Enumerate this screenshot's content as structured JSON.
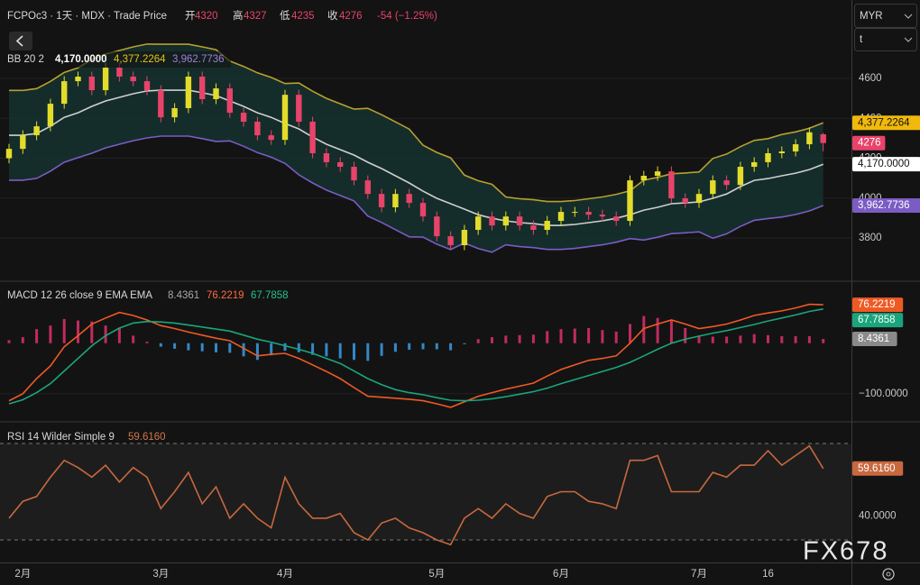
{
  "header": {
    "symbol": "FCPOc3 · 1天 · MDX · Trade Price",
    "ohlc_names": [
      "开",
      "高",
      "低",
      "收"
    ],
    "change": "-54 (−1.25%)"
  },
  "toolbar": {
    "currency": "MYR",
    "unit": "t"
  },
  "watermark": "FX678",
  "chart_data": [
    {
      "type": "candlestick",
      "title": "BB 20 2",
      "categories": [
        null,
        "2月",
        null,
        null,
        null,
        null,
        null,
        null,
        null,
        null,
        null,
        "3月",
        null,
        null,
        null,
        null,
        null,
        null,
        null,
        null,
        "4月",
        null,
        null,
        null,
        null,
        null,
        null,
        null,
        null,
        null,
        null,
        "5月",
        null,
        null,
        null,
        null,
        null,
        null,
        null,
        null,
        "6月",
        null,
        null,
        null,
        null,
        null,
        null,
        null,
        null,
        null,
        "7月",
        null,
        null,
        null,
        null,
        "16",
        null,
        null,
        null,
        null
      ],
      "open": [
        4200,
        4247,
        4315,
        4360,
        4473,
        4586,
        4609,
        4541,
        4654,
        4609,
        4586,
        4541,
        4405,
        4451,
        4609,
        4496,
        4550,
        4428,
        4383,
        4315,
        4292,
        4518,
        4383,
        4225,
        4180,
        4157,
        4089,
        4021,
        3954,
        4021,
        3976,
        3908,
        3809,
        3764,
        3841,
        3908,
        3863,
        3908,
        3863,
        3841,
        3886,
        3931,
        3931,
        3917,
        3908,
        3886,
        4089,
        4112,
        4134,
        3999,
        3976,
        4021,
        4089,
        4066,
        4157,
        4180,
        4225,
        4234,
        4270,
        4320
      ],
      "high": [
        4272,
        4340,
        4385,
        4498,
        4611,
        4634,
        4634,
        4679,
        4679,
        4634,
        4611,
        4566,
        4476,
        4634,
        4634,
        4575,
        4575,
        4453,
        4408,
        4340,
        4543,
        4543,
        4408,
        4250,
        4205,
        4182,
        4114,
        4046,
        4046,
        4046,
        4001,
        3933,
        3834,
        3866,
        3933,
        3933,
        3933,
        3933,
        3888,
        3911,
        3956,
        3956,
        3956,
        3942,
        3933,
        4114,
        4137,
        4159,
        4159,
        4024,
        4046,
        4114,
        4114,
        4182,
        4205,
        4250,
        4259,
        4295,
        4355,
        4327
      ],
      "low": [
        4175,
        4222,
        4290,
        4335,
        4448,
        4561,
        4516,
        4516,
        4584,
        4561,
        4516,
        4380,
        4380,
        4426,
        4471,
        4471,
        4403,
        4358,
        4290,
        4267,
        4267,
        4358,
        4200,
        4155,
        4132,
        4064,
        3996,
        3929,
        3929,
        3951,
        3883,
        3784,
        3739,
        3739,
        3816,
        3838,
        3838,
        3838,
        3816,
        3816,
        3861,
        3906,
        3892,
        3883,
        3861,
        3861,
        4064,
        4087,
        3974,
        3951,
        3951,
        3996,
        4041,
        4041,
        4132,
        4155,
        4200,
        4209,
        4245,
        4235
      ],
      "close": [
        4247,
        4315,
        4360,
        4473,
        4586,
        4609,
        4541,
        4654,
        4609,
        4586,
        4541,
        4405,
        4451,
        4609,
        4496,
        4550,
        4428,
        4383,
        4315,
        4292,
        4518,
        4383,
        4225,
        4180,
        4157,
        4089,
        4021,
        3954,
        4021,
        3976,
        3908,
        3809,
        3764,
        3841,
        3908,
        3863,
        3908,
        3863,
        3841,
        3886,
        3931,
        3931,
        3917,
        3908,
        3886,
        4089,
        4112,
        4134,
        3999,
        3976,
        4021,
        4089,
        4066,
        4157,
        4180,
        4225,
        4234,
        4270,
        4330,
        4276
      ],
      "up_color": "#e3dc2b",
      "down_color": "#e8436a",
      "band_fill": "#15322f",
      "series": [
        {
          "color": "#cfcfcf",
          "last_label": "4,170.0000",
          "values": [
            4315,
            4315,
            4324,
            4360,
            4405,
            4428,
            4460,
            4487,
            4505,
            4523,
            4537,
            4541,
            4541,
            4541,
            4528,
            4514,
            4487,
            4460,
            4428,
            4405,
            4374,
            4347,
            4306,
            4270,
            4243,
            4216,
            4180,
            4148,
            4112,
            4076,
            4035,
            3999,
            3972,
            3945,
            3917,
            3899,
            3886,
            3877,
            3872,
            3863,
            3863,
            3868,
            3877,
            3886,
            3899,
            3917,
            3940,
            3954,
            3972,
            3976,
            3981,
            3999,
            4021,
            4058,
            4089,
            4098,
            4112,
            4125,
            4143,
            4170
          ]
        },
        {
          "color": "#b8a02e",
          "last_label": "4,377.2264",
          "values": [
            4540,
            4540,
            4549,
            4585,
            4630,
            4653,
            4695,
            4722,
            4740,
            4758,
            4772,
            4771,
            4771,
            4771,
            4758,
            4744,
            4687,
            4660,
            4628,
            4605,
            4574,
            4577,
            4536,
            4500,
            4473,
            4446,
            4450,
            4418,
            4382,
            4346,
            4265,
            4229,
            4202,
            4115,
            4087,
            4069,
            4006,
            3997,
            3992,
            3983,
            3983,
            3988,
            3997,
            4006,
            4019,
            4037,
            4090,
            4104,
            4122,
            4126,
            4131,
            4199,
            4221,
            4258,
            4289,
            4298,
            4319,
            4332,
            4350,
            4377.2264
          ]
        },
        {
          "color": "#7b5cc4",
          "last_label": "3,962.7736",
          "values": [
            4090,
            4090,
            4099,
            4135,
            4180,
            4203,
            4225,
            4252,
            4270,
            4288,
            4302,
            4311,
            4311,
            4311,
            4298,
            4284,
            4287,
            4260,
            4228,
            4205,
            4174,
            4117,
            4076,
            4040,
            4013,
            3986,
            3910,
            3878,
            3842,
            3806,
            3805,
            3769,
            3742,
            3775,
            3747,
            3729,
            3766,
            3757,
            3752,
            3743,
            3743,
            3748,
            3757,
            3766,
            3779,
            3797,
            3790,
            3804,
            3822,
            3826,
            3831,
            3799,
            3821,
            3858,
            3889,
            3898,
            3905,
            3918,
            3936,
            3962.7736
          ]
        }
      ],
      "ylim": [
        3588,
        4993
      ],
      "yticks": [
        3800,
        4000,
        4200,
        4400,
        4600
      ],
      "grid": true
    },
    {
      "type": "macd",
      "title": "MACD 12 26 close 9 EMA EMA",
      "series": [
        {
          "type": "histogram",
          "up_color": "#e0306b",
          "down_color": "#3a9ee8",
          "last_color": "#8a8a8a",
          "last_label": "8.4361",
          "values": [
            6,
            12,
            28,
            35,
            48,
            45,
            43,
            35,
            31,
            15,
            3,
            -7,
            -11,
            -14,
            -16,
            -18,
            -19,
            -26,
            -33,
            -24,
            -15,
            -18,
            -23,
            -26,
            -30,
            -33,
            -35,
            -25,
            -17,
            -13,
            -12,
            -12,
            -14,
            -2,
            8,
            12,
            15,
            16,
            17,
            24,
            28,
            29,
            30,
            26,
            23,
            38,
            54,
            50,
            46,
            30,
            15,
            13,
            13,
            15,
            18,
            16,
            14,
            14,
            14,
            8.4361
          ]
        },
        {
          "type": "line",
          "color": "#ee5a24",
          "last_label": "76.2219",
          "values": [
            -114,
            -100,
            -70,
            -45,
            -7,
            15,
            38,
            50,
            61,
            55,
            46,
            35,
            29,
            22,
            16,
            10,
            5,
            -10,
            -25,
            -22,
            -20,
            -30,
            -43,
            -56,
            -70,
            -88,
            -105,
            -107,
            -109,
            -111,
            -114,
            -120,
            -127,
            -116,
            -105,
            -98,
            -91,
            -85,
            -79,
            -65,
            -52,
            -43,
            -34,
            -30,
            -25,
            0,
            29,
            38,
            46,
            38,
            29,
            33,
            38,
            46,
            55,
            60,
            64,
            70,
            77,
            76.2219
          ]
        },
        {
          "type": "line",
          "color": "#1aa57c",
          "last_label": "67.7858",
          "values": [
            -120,
            -112,
            -98,
            -80,
            -55,
            -30,
            -5,
            15,
            30,
            40,
            43,
            42,
            40,
            36,
            32,
            28,
            24,
            16,
            8,
            2,
            -5,
            -12,
            -20,
            -30,
            -40,
            -55,
            -70,
            -82,
            -92,
            -98,
            -102,
            -108,
            -113,
            -114,
            -113,
            -110,
            -106,
            -101,
            -96,
            -89,
            -80,
            -72,
            -64,
            -56,
            -48,
            -38,
            -25,
            -12,
            0,
            8,
            14,
            20,
            25,
            31,
            37,
            44,
            50,
            56,
            63,
            67.7858
          ]
        }
      ],
      "ylim": [
        -154,
        121
      ],
      "yticks": [
        {
          "value": -100,
          "label": "−100.0000"
        }
      ],
      "grid": true
    },
    {
      "type": "line",
      "title": "RSI 14 Wilder Simple 9",
      "color": "#c8683f",
      "last_label": "59.6160",
      "band_fill": "#1d1d1d",
      "levels": [
        30,
        70
      ],
      "values": [
        39,
        46,
        48,
        56,
        63,
        60,
        56,
        61,
        54,
        60,
        56,
        43,
        50,
        58,
        45,
        52,
        39,
        45,
        39,
        35,
        56,
        45,
        39,
        39,
        41,
        33,
        30,
        37,
        39,
        35,
        33,
        30,
        28,
        39,
        43,
        39,
        45,
        41,
        39,
        48,
        50,
        50,
        46,
        45,
        43,
        63,
        63,
        65,
        50,
        50,
        50,
        58,
        56,
        61,
        61,
        67,
        61,
        65,
        69,
        59.616
      ],
      "ylim": [
        20.65,
        78.6
      ],
      "yticks": [
        {
          "value": 40,
          "label": "40.0000"
        }
      ],
      "grid": true
    }
  ]
}
